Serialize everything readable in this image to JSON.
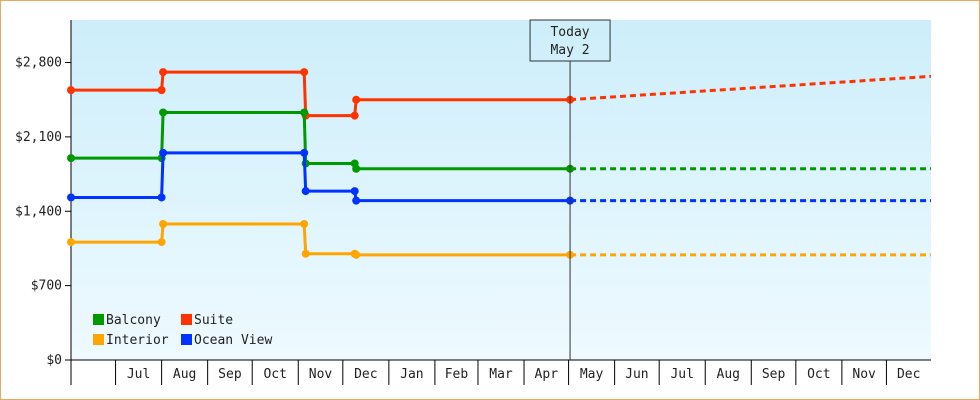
{
  "chart_data": {
    "type": "line",
    "step": true,
    "x_domain": [
      "2023-06-01",
      "2024-12-31"
    ],
    "ylim": [
      0,
      3200
    ],
    "y_ticks": [
      0,
      700,
      1400,
      2100,
      2800
    ],
    "y_tick_labels": [
      "$0",
      "$700",
      "$1,400",
      "$2,100",
      "$2,800"
    ],
    "x_tick_labels": [
      {
        "month": "2023-07-01",
        "label": "Jul"
      },
      {
        "month": "2023-08-01",
        "label": "Aug"
      },
      {
        "month": "2023-09-01",
        "label": "Sep"
      },
      {
        "month": "2023-10-01",
        "label": "Oct"
      },
      {
        "month": "2023-11-01",
        "label": "Nov"
      },
      {
        "month": "2023-12-01",
        "label": "Dec"
      },
      {
        "month": "2024-01-01",
        "label": "Jan"
      },
      {
        "month": "2024-02-01",
        "label": "Feb"
      },
      {
        "month": "2024-03-01",
        "label": "Mar"
      },
      {
        "month": "2024-04-01",
        "label": "Apr"
      },
      {
        "month": "2024-05-01",
        "label": "May"
      },
      {
        "month": "2024-06-01",
        "label": "Jun"
      },
      {
        "month": "2024-07-01",
        "label": "Jul"
      },
      {
        "month": "2024-08-01",
        "label": "Aug"
      },
      {
        "month": "2024-09-01",
        "label": "Sep"
      },
      {
        "month": "2024-10-01",
        "label": "Oct"
      },
      {
        "month": "2024-11-01",
        "label": "Nov"
      },
      {
        "month": "2024-12-01",
        "label": "Dec"
      }
    ],
    "today": {
      "date": "2024-05-02",
      "line1": "Today",
      "line2": "May 2"
    },
    "legend_position": "bottom-left",
    "background_gradient": [
      "#cdeefa",
      "#eefaff"
    ],
    "series": [
      {
        "name": "Suite",
        "color": "#ff3300",
        "points": [
          {
            "date": "2023-06-01",
            "value": 2540
          },
          {
            "date": "2023-08-01",
            "value": 2540
          },
          {
            "date": "2023-08-02",
            "value": 2710
          },
          {
            "date": "2023-11-05",
            "value": 2710
          },
          {
            "date": "2023-11-06",
            "value": 2300
          },
          {
            "date": "2023-12-09",
            "value": 2300
          },
          {
            "date": "2023-12-10",
            "value": 2450
          },
          {
            "date": "2024-05-02",
            "value": 2450
          }
        ],
        "forecast": [
          {
            "date": "2024-05-02",
            "value": 2450
          },
          {
            "date": "2024-12-31",
            "value": 2670
          }
        ]
      },
      {
        "name": "Balcony",
        "color": "#009900",
        "points": [
          {
            "date": "2023-06-01",
            "value": 1900
          },
          {
            "date": "2023-08-01",
            "value": 1900
          },
          {
            "date": "2023-08-02",
            "value": 2330
          },
          {
            "date": "2023-11-05",
            "value": 2330
          },
          {
            "date": "2023-11-06",
            "value": 1850
          },
          {
            "date": "2023-12-09",
            "value": 1850
          },
          {
            "date": "2023-12-10",
            "value": 1800
          },
          {
            "date": "2024-05-02",
            "value": 1800
          }
        ],
        "forecast": [
          {
            "date": "2024-05-02",
            "value": 1800
          },
          {
            "date": "2024-12-31",
            "value": 1800
          }
        ]
      },
      {
        "name": "Ocean View",
        "color": "#0033ff",
        "points": [
          {
            "date": "2023-06-01",
            "value": 1530
          },
          {
            "date": "2023-08-01",
            "value": 1530
          },
          {
            "date": "2023-08-02",
            "value": 1950
          },
          {
            "date": "2023-11-05",
            "value": 1950
          },
          {
            "date": "2023-11-06",
            "value": 1590
          },
          {
            "date": "2023-12-09",
            "value": 1590
          },
          {
            "date": "2023-12-10",
            "value": 1500
          },
          {
            "date": "2024-05-02",
            "value": 1500
          }
        ],
        "forecast": [
          {
            "date": "2024-05-02",
            "value": 1500
          },
          {
            "date": "2024-12-31",
            "value": 1500
          }
        ]
      },
      {
        "name": "Interior",
        "color": "#ffa500",
        "points": [
          {
            "date": "2023-06-01",
            "value": 1110
          },
          {
            "date": "2023-08-01",
            "value": 1110
          },
          {
            "date": "2023-08-02",
            "value": 1280
          },
          {
            "date": "2023-11-05",
            "value": 1280
          },
          {
            "date": "2023-11-06",
            "value": 1000
          },
          {
            "date": "2023-12-09",
            "value": 1000
          },
          {
            "date": "2023-12-10",
            "value": 990
          },
          {
            "date": "2024-05-02",
            "value": 990
          }
        ],
        "forecast": [
          {
            "date": "2024-05-02",
            "value": 990
          },
          {
            "date": "2024-12-31",
            "value": 990
          }
        ]
      }
    ],
    "legend": [
      {
        "name": "Balcony",
        "color": "#009900"
      },
      {
        "name": "Suite",
        "color": "#ff3300"
      },
      {
        "name": "Interior",
        "color": "#ffa500"
      },
      {
        "name": "Ocean View",
        "color": "#0033ff"
      }
    ]
  }
}
